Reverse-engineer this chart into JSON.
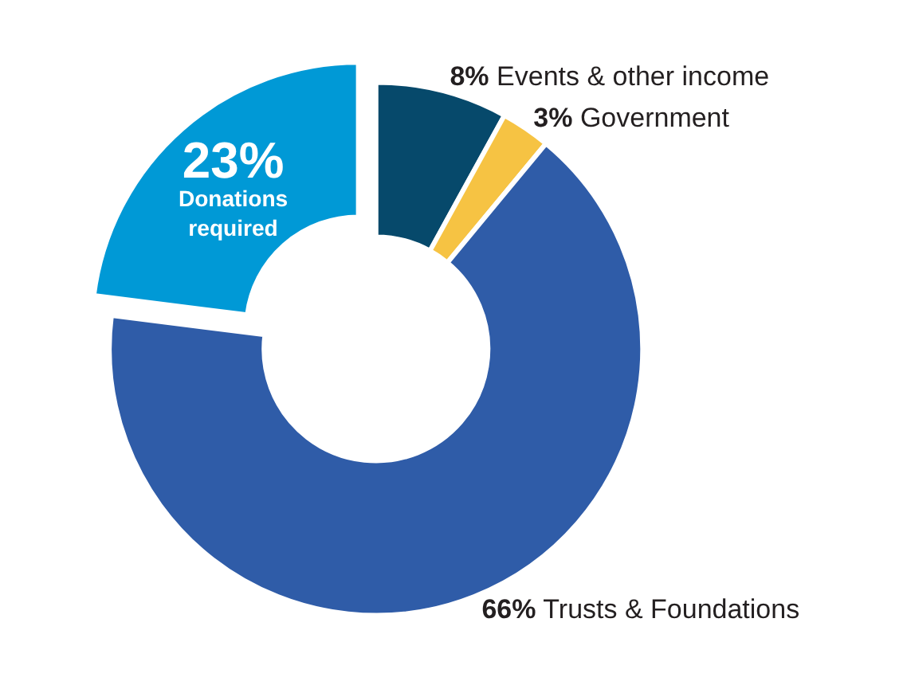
{
  "chart_data": {
    "type": "donut",
    "categories": [
      "Events & other income",
      "Government",
      "Trusts & Foundations",
      "Donations required"
    ],
    "values": [
      8,
      3,
      66,
      23
    ],
    "value_labels": [
      "8%",
      "3%",
      "66%",
      "23%"
    ],
    "colors": [
      "#06496b",
      "#f6c343",
      "#2f5ca8",
      "#0099d6"
    ],
    "legend": false
  }
}
